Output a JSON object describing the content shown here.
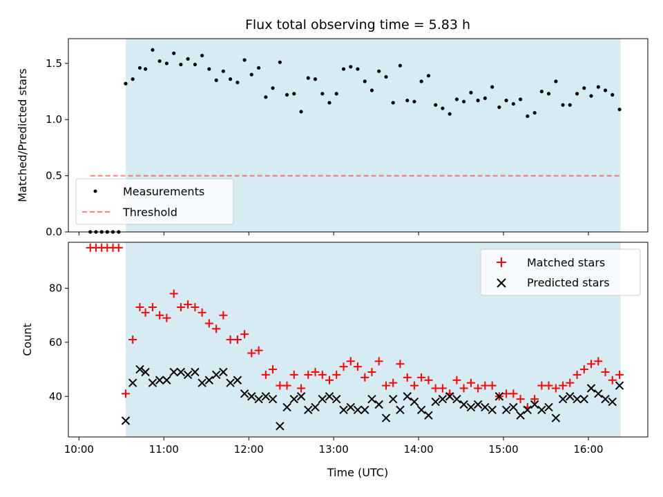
{
  "colors": {
    "span": "#add8e6",
    "measurement": "#000000",
    "threshold": "#ff0000",
    "matched": "#ff0000",
    "predicted": "#000000"
  },
  "chart_data": [
    {
      "type": "scatter",
      "title": "Flux total observing time = 5.83 h",
      "xlabel": "",
      "ylabel": "Matched/Predicted stars",
      "xlim": [
        9.875,
        16.7
      ],
      "ylim": [
        0,
        1.72
      ],
      "yticks": [
        0.0,
        0.5,
        1.0,
        1.5
      ],
      "ytick_labels": [
        "0.0",
        "0.5",
        "1.0",
        "1.5"
      ],
      "legend_position": "lower-left",
      "shaded_span": [
        10.55,
        16.38
      ],
      "series": [
        {
          "name": "Measurements",
          "marker": "dot",
          "x": [
            10.133,
            10.2,
            10.267,
            10.333,
            10.4,
            10.467,
            10.55,
            10.633,
            10.717,
            10.783,
            10.867,
            10.95,
            11.033,
            11.117,
            11.2,
            11.283,
            11.367,
            11.45,
            11.533,
            11.617,
            11.7,
            11.783,
            11.867,
            11.95,
            12.033,
            12.117,
            12.2,
            12.283,
            12.367,
            12.45,
            12.533,
            12.617,
            12.7,
            12.783,
            12.867,
            12.95,
            13.033,
            13.117,
            13.2,
            13.283,
            13.367,
            13.45,
            13.533,
            13.617,
            13.7,
            13.783,
            13.867,
            13.95,
            14.033,
            14.117,
            14.2,
            14.283,
            14.367,
            14.45,
            14.533,
            14.617,
            14.7,
            14.783,
            14.867,
            14.95,
            15.033,
            15.117,
            15.2,
            15.283,
            15.367,
            15.45,
            15.533,
            15.617,
            15.7,
            15.783,
            15.867,
            15.95,
            16.033,
            16.117,
            16.2,
            16.283,
            16.367
          ],
          "y": [
            0.0,
            0.0,
            0.0,
            0.0,
            0.0,
            0.0,
            1.32,
            1.36,
            1.46,
            1.45,
            1.62,
            1.52,
            1.5,
            1.59,
            1.49,
            1.54,
            1.49,
            1.57,
            1.45,
            1.35,
            1.43,
            1.36,
            1.33,
            1.53,
            1.4,
            1.46,
            1.2,
            1.28,
            1.51,
            1.22,
            1.23,
            1.07,
            1.37,
            1.36,
            1.23,
            1.15,
            1.23,
            1.45,
            1.47,
            1.45,
            1.34,
            1.26,
            1.43,
            1.38,
            1.15,
            1.48,
            1.17,
            1.16,
            1.34,
            1.39,
            1.13,
            1.1,
            1.05,
            1.18,
            1.16,
            1.24,
            1.17,
            1.19,
            1.29,
            1.11,
            1.17,
            1.14,
            1.18,
            1.03,
            1.06,
            1.25,
            1.23,
            1.34,
            1.13,
            1.13,
            1.23,
            1.28,
            1.21,
            1.29,
            1.26,
            1.22,
            1.09
          ]
        },
        {
          "name": "Threshold",
          "style": "dashed-line",
          "x": [
            10.133,
            16.367
          ],
          "y": [
            0.5,
            0.5
          ]
        }
      ]
    },
    {
      "type": "scatter",
      "title": "",
      "xlabel": "Time (UTC)",
      "ylabel": "Count",
      "xlim": [
        9.875,
        16.7
      ],
      "ylim": [
        25,
        97
      ],
      "yticks": [
        40,
        60,
        80
      ],
      "ytick_labels": [
        "40",
        "60",
        "80"
      ],
      "xticks": [
        10,
        11,
        12,
        13,
        14,
        15,
        16
      ],
      "xtick_labels": [
        "10:00",
        "11:00",
        "12:00",
        "13:00",
        "14:00",
        "15:00",
        "16:00"
      ],
      "legend_position": "upper-right",
      "shaded_span": [
        10.55,
        16.38
      ],
      "series": [
        {
          "name": "Matched stars",
          "marker": "plus",
          "x": [
            10.133,
            10.2,
            10.267,
            10.333,
            10.4,
            10.467,
            10.55,
            10.633,
            10.717,
            10.783,
            10.867,
            10.95,
            11.033,
            11.117,
            11.2,
            11.283,
            11.367,
            11.45,
            11.533,
            11.617,
            11.7,
            11.783,
            11.867,
            11.95,
            12.033,
            12.117,
            12.2,
            12.283,
            12.367,
            12.45,
            12.533,
            12.617,
            12.7,
            12.783,
            12.867,
            12.95,
            13.033,
            13.117,
            13.2,
            13.283,
            13.367,
            13.45,
            13.533,
            13.617,
            13.7,
            13.783,
            13.867,
            13.95,
            14.033,
            14.117,
            14.2,
            14.283,
            14.367,
            14.45,
            14.533,
            14.617,
            14.7,
            14.783,
            14.867,
            14.95,
            15.033,
            15.117,
            15.2,
            15.283,
            15.367,
            15.45,
            15.533,
            15.617,
            15.7,
            15.783,
            15.867,
            15.95,
            16.033,
            16.117,
            16.2,
            16.283,
            16.367
          ],
          "y": [
            95,
            95,
            95,
            95,
            95,
            95,
            41,
            61,
            73,
            71,
            73,
            70,
            69,
            78,
            73,
            74,
            73,
            71,
            67,
            65,
            70,
            61,
            61,
            63,
            56,
            57,
            48,
            50,
            44,
            44,
            48,
            43,
            48,
            49,
            48,
            46,
            48,
            51,
            53,
            51,
            47,
            49,
            53,
            44,
            45,
            52,
            47,
            44,
            47,
            46,
            43,
            43,
            41,
            46,
            43,
            45,
            43,
            44,
            44,
            40,
            41,
            41,
            39,
            36,
            39,
            44,
            44,
            43,
            44,
            45,
            48,
            50,
            52,
            53,
            49,
            46,
            48
          ]
        },
        {
          "name": "Predicted stars",
          "marker": "x",
          "x": [
            10.55,
            10.633,
            10.717,
            10.783,
            10.867,
            10.95,
            11.033,
            11.117,
            11.2,
            11.283,
            11.367,
            11.45,
            11.533,
            11.617,
            11.7,
            11.783,
            11.867,
            11.95,
            12.033,
            12.117,
            12.2,
            12.283,
            12.367,
            12.45,
            12.533,
            12.617,
            12.7,
            12.783,
            12.867,
            12.95,
            13.033,
            13.117,
            13.2,
            13.283,
            13.367,
            13.45,
            13.533,
            13.617,
            13.7,
            13.783,
            13.867,
            13.95,
            14.033,
            14.117,
            14.2,
            14.283,
            14.367,
            14.45,
            14.533,
            14.617,
            14.7,
            14.783,
            14.867,
            14.95,
            15.033,
            15.117,
            15.2,
            15.283,
            15.367,
            15.45,
            15.533,
            15.617,
            15.7,
            15.783,
            15.867,
            15.95,
            16.033,
            16.117,
            16.2,
            16.283,
            16.367
          ],
          "y": [
            31,
            45,
            50,
            49,
            45,
            46,
            46,
            49,
            49,
            48,
            49,
            45,
            46,
            48,
            49,
            45,
            46,
            41,
            40,
            39,
            40,
            39,
            29,
            36,
            39,
            40,
            35,
            36,
            39,
            40,
            39,
            35,
            36,
            35,
            35,
            39,
            37,
            32,
            39,
            35,
            40,
            38,
            35,
            33,
            38,
            39,
            40,
            39,
            37,
            36,
            37,
            36,
            35,
            40,
            35,
            36,
            33,
            35,
            37,
            35,
            36,
            32,
            39,
            40,
            39,
            39,
            43,
            41,
            39,
            38,
            44
          ]
        }
      ]
    }
  ]
}
